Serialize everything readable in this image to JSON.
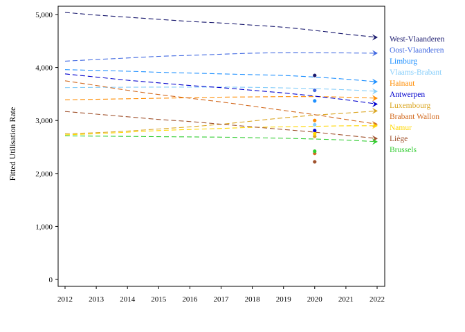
{
  "chart_data": {
    "type": "line",
    "title": "",
    "xlabel": "",
    "ylabel": "Fitted Utilisation Rate",
    "xlim": [
      2012,
      2022
    ],
    "ylim": [
      0,
      5000
    ],
    "x_ticks": [
      "2012",
      "2013",
      "2014",
      "2015",
      "2016",
      "2017",
      "2018",
      "2019",
      "2020",
      "2021",
      "2022"
    ],
    "y_ticks": [
      "0",
      "1,000",
      "2,000",
      "3,000",
      "4,000",
      "5,000"
    ],
    "grid": false,
    "legend_position": "right",
    "x": [
      2012,
      2013,
      2014,
      2015,
      2016,
      2017,
      2018,
      2019,
      2020,
      2021,
      2022
    ],
    "observed_year": 2020,
    "series": [
      {
        "name": "West-Vlaanderen",
        "color": "#1a1a6e",
        "values": [
          5040,
          4990,
          4950,
          4910,
          4870,
          4840,
          4800,
          4760,
          4700,
          4630,
          4570
        ],
        "observed": 3850
      },
      {
        "name": "Oost-Vlaanderen",
        "color": "#4169e1",
        "values": [
          4120,
          4150,
          4180,
          4210,
          4230,
          4250,
          4270,
          4280,
          4280,
          4275,
          4270
        ],
        "observed": 3570
      },
      {
        "name": "Limburg",
        "color": "#1e90ff",
        "values": [
          3960,
          3945,
          3930,
          3910,
          3895,
          3880,
          3865,
          3850,
          3820,
          3780,
          3730
        ],
        "observed": 3370
      },
      {
        "name": "Vlaams-Brabant",
        "color": "#87cefa",
        "values": [
          3620,
          3625,
          3628,
          3630,
          3630,
          3630,
          3625,
          3615,
          3600,
          3580,
          3550
        ],
        "observed": 2920
      },
      {
        "name": "Hainaut",
        "color": "#ff8c00",
        "values": [
          3390,
          3400,
          3410,
          3420,
          3430,
          3440,
          3445,
          3450,
          3450,
          3440,
          3420
        ],
        "observed": 3000
      },
      {
        "name": "Antwerpen",
        "color": "#0000cd",
        "values": [
          3880,
          3820,
          3760,
          3710,
          3660,
          3620,
          3570,
          3520,
          3460,
          3390,
          3310
        ],
        "observed": 2810
      },
      {
        "name": "Luxembourg",
        "color": "#daa520",
        "values": [
          2750,
          2770,
          2800,
          2840,
          2880,
          2930,
          2990,
          3050,
          3100,
          3140,
          3180
        ],
        "observed": 2700
      },
      {
        "name": "Brabant Wallon",
        "color": "#d2691e",
        "values": [
          3750,
          3660,
          3570,
          3490,
          3420,
          3350,
          3270,
          3190,
          3110,
          3020,
          2930
        ],
        "observed": 2380
      },
      {
        "name": "Namur",
        "color": "#ffd700",
        "values": [
          2730,
          2750,
          2780,
          2810,
          2830,
          2850,
          2870,
          2880,
          2890,
          2900,
          2900
        ],
        "observed": 2750
      },
      {
        "name": "Liège",
        "color": "#a0522d",
        "values": [
          3170,
          3120,
          3070,
          3020,
          2980,
          2930,
          2880,
          2830,
          2780,
          2720,
          2660
        ],
        "observed": 2220
      },
      {
        "name": "Brussels",
        "color": "#32cd32",
        "values": [
          2710,
          2705,
          2700,
          2695,
          2690,
          2685,
          2675,
          2665,
          2650,
          2630,
          2600
        ],
        "observed": 2420
      }
    ]
  }
}
